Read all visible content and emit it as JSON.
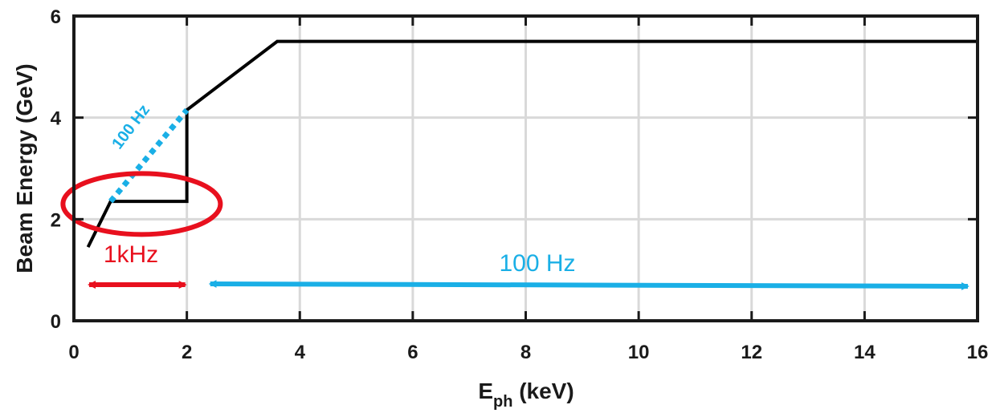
{
  "chart_data": {
    "type": "line",
    "xlabel_main": "E",
    "xlabel_sub": "ph",
    "xlabel_unit": " (keV)",
    "ylabel": "Beam Energy (GeV)",
    "xlim": [
      0,
      16
    ],
    "ylim": [
      0,
      6
    ],
    "xticks": [
      0,
      2,
      4,
      6,
      8,
      10,
      12,
      14,
      16
    ],
    "yticks": [
      0,
      2,
      4,
      6
    ],
    "grid": true,
    "series": [
      {
        "style": "solid",
        "color": "#000000",
        "x": [
          0.25,
          0.65,
          2.0,
          2.0,
          3.6,
          16.0
        ],
        "y": [
          1.45,
          2.35,
          2.35,
          4.15,
          5.5,
          5.5
        ]
      },
      {
        "style": "dotted",
        "color": "#1aafe6",
        "x": [
          0.65,
          2.0
        ],
        "y": [
          2.35,
          4.15
        ]
      }
    ],
    "annotations": {
      "dotted_label": "100 Hz",
      "low_label": "1kHz",
      "high_label": "100 Hz",
      "low_range": [
        0.1,
        2.0
      ],
      "high_range": [
        2.3,
        15.8
      ],
      "circle_center": [
        1.2,
        2.3
      ],
      "red_color": "#e8101e",
      "blue_color": "#1aafe6"
    }
  }
}
